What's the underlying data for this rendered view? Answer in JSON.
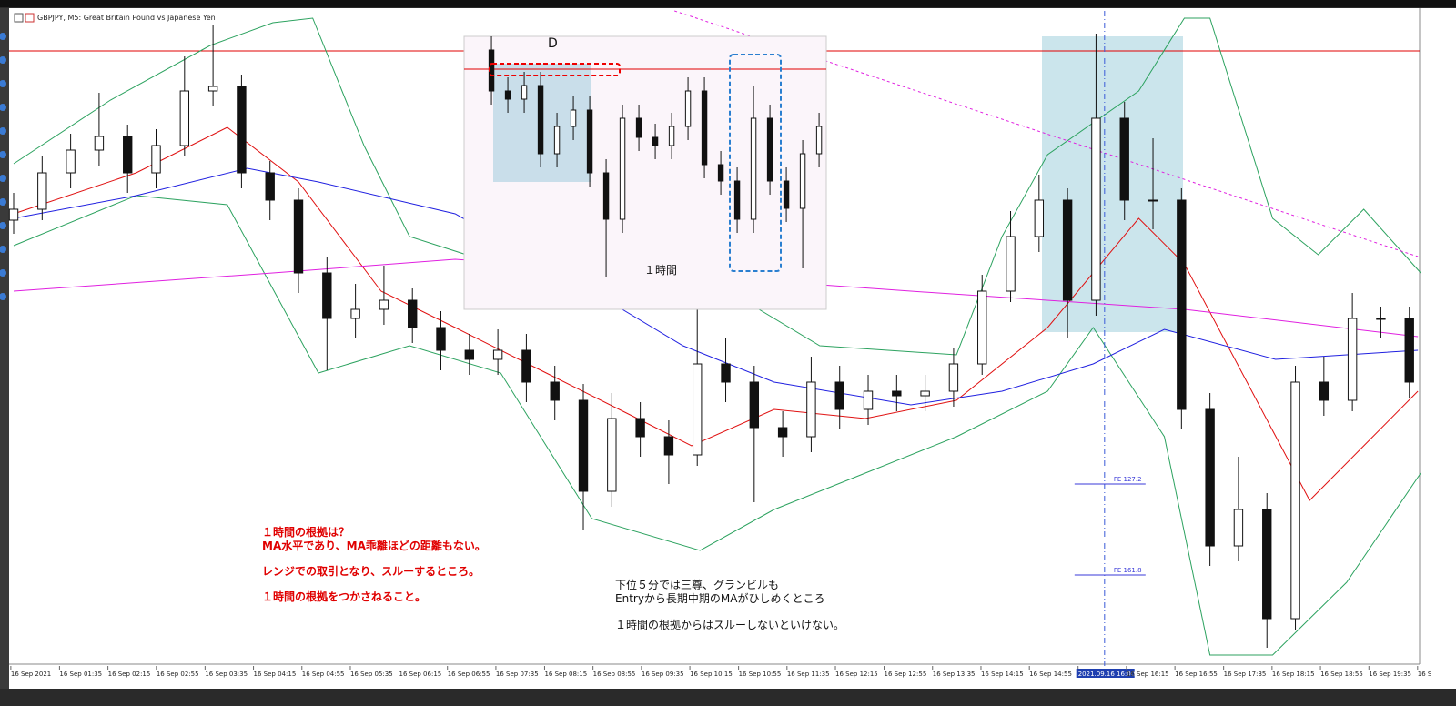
{
  "window": {
    "title": "GBPJPY, M5:  Great Britain Pound vs Japanese Yen"
  },
  "annotations": {
    "red": [
      "１時間の根拠は？",
      "MA水平であり、MA乖離ほどの距離もない。",
      "レンジでの取引となり、スルーするところ。",
      "１時間の根拠をつかさねること。"
    ],
    "black": [
      "下位５分では三尊、グランビルも",
      "Entryから長期中期のMAがひしめくところ",
      "１時間の根拠からはスルーしないといけない。"
    ]
  },
  "chart_data": [
    {
      "type": "candlestick",
      "xlim": [
        -0.16,
        49.36
      ],
      "ylim": [
        151.38,
        152.1
      ],
      "xticks": [
        {
          "value": -0.1,
          "label": "16 Sep 2021"
        },
        {
          "value": 1.61,
          "label": "16 Sep 01:35"
        },
        {
          "value": 3.31,
          "label": "16 Sep 02:15"
        },
        {
          "value": 5.01,
          "label": "16 Sep 02:55"
        },
        {
          "value": 6.72,
          "label": "16 Sep 03:35"
        },
        {
          "value": 8.42,
          "label": "16 Sep 04:15"
        },
        {
          "value": 10.12,
          "label": "16 Sep 04:55"
        },
        {
          "value": 11.82,
          "label": "16 Sep 05:35"
        },
        {
          "value": 13.53,
          "label": "16 Sep 06:15"
        },
        {
          "value": 15.23,
          "label": "16 Sep 06:55"
        },
        {
          "value": 16.93,
          "label": "16 Sep 07:35"
        },
        {
          "value": 18.64,
          "label": "16 Sep 08:15"
        },
        {
          "value": 20.34,
          "label": "16 Sep 08:55"
        },
        {
          "value": 22.04,
          "label": "16 Sep 09:35"
        },
        {
          "value": 23.74,
          "label": "16 Sep 10:15"
        },
        {
          "value": 25.45,
          "label": "16 Sep 10:55"
        },
        {
          "value": 27.15,
          "label": "16 Sep 11:35"
        },
        {
          "value": 28.85,
          "label": "16 Sep 12:15"
        },
        {
          "value": 30.56,
          "label": "16 Sep 12:55"
        },
        {
          "value": 32.26,
          "label": "16 Sep 13:35"
        },
        {
          "value": 33.96,
          "label": "16 Sep 14:15"
        },
        {
          "value": 35.66,
          "label": "16 Sep 14:55"
        },
        {
          "value": 37.37,
          "label": "2021.09.16 16:00"
        },
        {
          "value": 39.07,
          "label": "16 Sep 16:15"
        },
        {
          "value": 40.77,
          "label": "16 Sep 16:55"
        },
        {
          "value": 42.48,
          "label": "16 Sep 17:35"
        },
        {
          "value": 44.18,
          "label": "16 Sep 18:15"
        },
        {
          "value": 45.88,
          "label": "16 Sep 18:55"
        },
        {
          "value": 47.58,
          "label": "16 Sep 19:35"
        },
        {
          "value": 49.29,
          "label": "16 S"
        }
      ],
      "open": [
        151.87,
        151.882,
        151.922,
        151.947,
        151.962,
        151.922,
        151.952,
        152.012,
        152.017,
        151.922,
        151.892,
        151.812,
        151.762,
        151.772,
        151.782,
        151.752,
        151.727,
        151.717,
        151.727,
        151.692,
        151.672,
        151.572,
        151.652,
        151.632,
        151.612,
        151.712,
        151.692,
        151.642,
        151.632,
        151.692,
        151.662,
        151.682,
        151.677,
        151.682,
        151.712,
        151.792,
        151.852,
        151.892,
        151.782,
        151.982,
        151.892,
        151.892,
        151.662,
        151.512,
        151.552,
        151.432,
        151.692,
        151.672,
        151.762,
        151.762
      ],
      "high": [
        151.9,
        151.94,
        151.965,
        152.01,
        151.975,
        151.97,
        152.05,
        152.085,
        152.03,
        151.935,
        151.905,
        151.83,
        151.8,
        151.82,
        151.795,
        151.77,
        151.745,
        151.75,
        151.745,
        151.71,
        151.69,
        151.68,
        151.67,
        151.65,
        151.78,
        151.74,
        151.71,
        151.66,
        151.72,
        151.71,
        151.7,
        151.7,
        151.7,
        151.73,
        151.81,
        151.88,
        151.92,
        151.905,
        152.075,
        152.0,
        151.96,
        151.905,
        151.68,
        151.61,
        151.57,
        151.71,
        151.72,
        151.79,
        151.775,
        151.775
      ],
      "low": [
        151.855,
        151.87,
        151.905,
        151.93,
        151.9,
        151.905,
        151.94,
        151.995,
        151.905,
        151.87,
        151.79,
        151.705,
        151.74,
        151.755,
        151.735,
        151.705,
        151.7,
        151.7,
        151.67,
        151.65,
        151.53,
        151.555,
        151.61,
        151.58,
        151.6,
        151.67,
        151.56,
        151.61,
        151.615,
        151.64,
        151.645,
        151.66,
        151.66,
        151.665,
        151.7,
        151.78,
        151.835,
        151.74,
        151.765,
        151.87,
        151.86,
        151.64,
        151.49,
        151.495,
        151.4,
        151.42,
        151.655,
        151.66,
        151.74,
        151.675
      ],
      "close": [
        151.882,
        151.922,
        151.947,
        151.962,
        151.922,
        151.952,
        152.012,
        152.017,
        151.922,
        151.892,
        151.812,
        151.762,
        151.772,
        151.782,
        151.752,
        151.727,
        151.717,
        151.727,
        151.692,
        151.672,
        151.572,
        151.652,
        151.632,
        151.612,
        151.712,
        151.692,
        151.642,
        151.632,
        151.692,
        151.662,
        151.682,
        151.677,
        151.682,
        151.712,
        151.792,
        151.852,
        151.892,
        151.782,
        151.982,
        151.892,
        151.892,
        151.662,
        151.512,
        151.552,
        151.432,
        151.692,
        151.672,
        151.762,
        151.762,
        151.692
      ],
      "lines": [
        {
          "color": "#2ca25f",
          "x": [
            0,
            3.4,
            6.9,
            9.1,
            10.5,
            12.3,
            13.9,
            21.9,
            25.1,
            28.3,
            33.1,
            34.7,
            36.3,
            39.5,
            41.1,
            42.0,
            44.2,
            45.8,
            47.4,
            49.4
          ],
          "values": [
            151.932,
            152.002,
            152.062,
            152.087,
            152.092,
            151.952,
            151.852,
            151.772,
            151.792,
            151.732,
            151.722,
            151.852,
            151.942,
            152.012,
            152.092,
            152.092,
            151.872,
            151.832,
            151.882,
            151.812
          ]
        },
        {
          "color": "#2ca25f",
          "x": [
            0,
            4.3,
            7.5,
            10.7,
            13.9,
            17.1,
            20.3,
            24.1,
            26.7,
            29.9,
            33.1,
            36.3,
            37.9,
            40.4,
            42.0,
            44.2,
            46.8,
            49.4
          ],
          "values": [
            151.842,
            151.897,
            151.887,
            151.702,
            151.732,
            151.702,
            151.542,
            151.507,
            151.552,
            151.592,
            151.632,
            151.682,
            151.752,
            151.632,
            151.392,
            151.392,
            151.472,
            151.592
          ]
        },
        {
          "color": "#e01010",
          "x": [
            0,
            4.3,
            7.5,
            10,
            12.9,
            15.5,
            18.7,
            21.9,
            23.8,
            26.7,
            29.9,
            33.1,
            36.3,
            39.5,
            41.1,
            43.3,
            45.5,
            47.4,
            49.3
          ],
          "values": [
            151.877,
            151.922,
            151.972,
            151.912,
            151.792,
            151.752,
            151.702,
            151.652,
            151.622,
            151.662,
            151.652,
            151.672,
            151.752,
            151.872,
            151.822,
            151.692,
            151.562,
            151.622,
            151.682
          ]
        },
        {
          "color": "#2020e0",
          "x": [
            0,
            4.3,
            8.2,
            10.7,
            15.5,
            20.3,
            23.5,
            26.7,
            31.5,
            34.7,
            37.9,
            40.4,
            44.3,
            49.3
          ],
          "values": [
            151.872,
            151.897,
            151.927,
            151.912,
            151.877,
            151.792,
            151.732,
            151.692,
            151.667,
            151.682,
            151.712,
            151.75,
            151.717,
            151.727
          ]
        },
        {
          "color": "#e020e0",
          "x": [
            0,
            9.1,
            15.5,
            31.5,
            41.1,
            49.3
          ],
          "values": [
            151.792,
            151.812,
            151.827,
            151.792,
            151.772,
            151.742
          ]
        },
        {
          "color": "#e020e0",
          "style": "dashed",
          "x": [
            23.2,
            49.3
          ],
          "values": [
            152.1,
            151.83
          ]
        }
      ],
      "hlines": [
        {
          "value": 152.056,
          "color": "#e00000"
        }
      ],
      "fe_levels": [
        {
          "value": 151.58,
          "label": "FE  127.2"
        },
        {
          "value": 151.48,
          "label": "FE  161.8"
        }
      ],
      "vline": 38.3
    },
    {
      "type": "candlestick",
      "xlim": [
        -1.67,
        20.44
      ],
      "ylim": [
        0,
        100
      ],
      "label": "D",
      "caption": "１時間",
      "open": [
        95,
        80,
        77,
        82,
        57,
        67,
        73,
        50,
        33,
        70,
        63,
        60,
        67,
        80,
        53,
        47,
        33,
        70,
        47,
        37,
        57
      ],
      "high": [
        100,
        85,
        87,
        87,
        72,
        78,
        78,
        55,
        75,
        75,
        68,
        72,
        85,
        85,
        58,
        52,
        82,
        75,
        52,
        62,
        72
      ],
      "low": [
        75,
        72,
        72,
        52,
        52,
        62,
        45,
        12,
        28,
        58,
        55,
        55,
        62,
        48,
        42,
        28,
        28,
        42,
        32,
        15,
        52
      ],
      "close": [
        80,
        77,
        82,
        57,
        67,
        73,
        50,
        33,
        70,
        63,
        60,
        67,
        80,
        53,
        47,
        33,
        70,
        47,
        37,
        57,
        67
      ],
      "hlines": [
        {
          "value": 88,
          "color": "#e00000"
        }
      ]
    }
  ]
}
